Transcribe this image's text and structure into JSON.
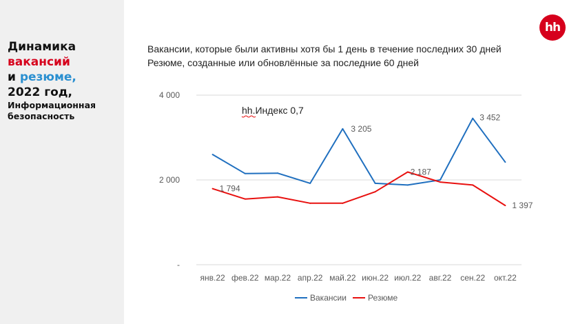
{
  "sidebar": {
    "title_line1": "Динамика",
    "title_line2": "вакансий",
    "title_line3_prefix": "и ",
    "title_line3_word": "резюме,",
    "title_line4": "2022 год,",
    "subtitle_line1": "Информационная",
    "subtitle_line2": "безопасность"
  },
  "logo_text": "hh",
  "description": {
    "line1": "Вакансии, которые были активны хотя бы 1 день в течение последних 30 дней",
    "line2": "Резюме, созданные или обновлённые за последние 60 дней"
  },
  "colors": {
    "vacancies": "#1f6fbf",
    "resumes": "#e8100f",
    "brand": "#d6001c"
  },
  "chart_data": {
    "type": "line",
    "categories": [
      "янв.22",
      "фев.22",
      "мар.22",
      "апр.22",
      "май.22",
      "июн.22",
      "июл.22",
      "авг.22",
      "сен.22",
      "окт.22"
    ],
    "series": [
      {
        "name": "Вакансии",
        "values": [
          2600,
          2150,
          2160,
          1920,
          3205,
          1920,
          1880,
          2000,
          3452,
          2420
        ]
      },
      {
        "name": "Резюме",
        "values": [
          1794,
          1550,
          1600,
          1450,
          1450,
          1720,
          2187,
          1950,
          1880,
          1397
        ]
      }
    ],
    "data_labels": [
      {
        "series": 0,
        "index": 4,
        "text": "3 205"
      },
      {
        "series": 0,
        "index": 8,
        "text": "3 452"
      },
      {
        "series": 1,
        "index": 0,
        "text": "1 794"
      },
      {
        "series": 1,
        "index": 6,
        "text": "2 187"
      },
      {
        "series": 1,
        "index": 9,
        "text": "1 397"
      }
    ],
    "y_ticks": [
      {
        "value": 4000,
        "label": "4 000"
      },
      {
        "value": 2000,
        "label": "2 000"
      },
      {
        "value": 0,
        "label": "-"
      }
    ],
    "ylim": [
      0,
      4000
    ],
    "annotation": "hh.Индекс 0,7",
    "grid": true,
    "legend_position": "bottom"
  }
}
